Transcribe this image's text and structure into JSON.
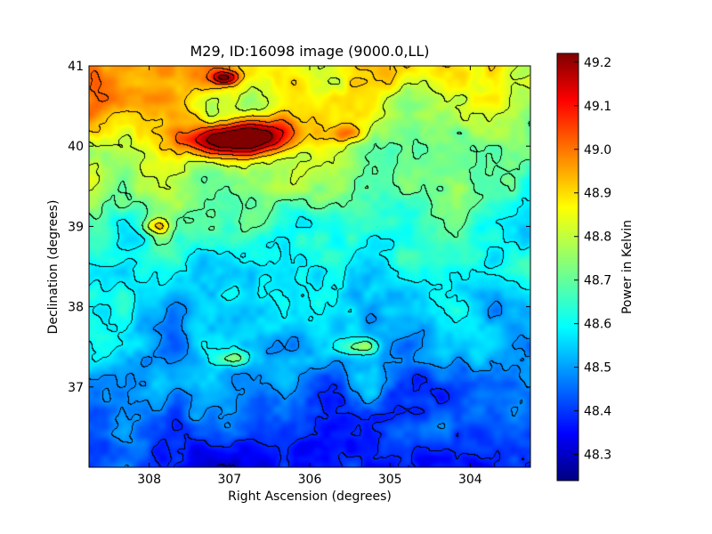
{
  "chart_data": {
    "type": "heatmap",
    "title": "M29, ID:16098 image (9000.0,LL)",
    "xlabel": "Right Ascension (degrees)",
    "ylabel": "Declination (degrees)",
    "xlim": [
      308.75,
      303.25
    ],
    "ylim": [
      36.0,
      41.0
    ],
    "x_ticks": [
      308,
      307,
      306,
      305,
      304
    ],
    "x_tick_labels": [
      "308",
      "307",
      "306",
      "305",
      "304"
    ],
    "y_ticks": [
      37,
      38,
      39,
      40,
      41
    ],
    "y_tick_labels": [
      "37",
      "38",
      "39",
      "40",
      "41"
    ],
    "colorbar": {
      "label": "Power in Kelvin",
      "range": [
        48.24,
        49.22
      ],
      "ticks": [
        48.3,
        48.4,
        48.5,
        48.6,
        48.7,
        48.8,
        48.9,
        49.0,
        49.1,
        49.2
      ],
      "tick_labels": [
        "48.3",
        "48.4",
        "48.5",
        "48.6",
        "48.7",
        "48.8",
        "48.9",
        "49.0",
        "49.1",
        "49.2"
      ],
      "colormap": "jet"
    },
    "contours": true,
    "features": [
      {
        "ra": 306.6,
        "dec": 40.12,
        "peak": 49.18
      },
      {
        "ra": 307.1,
        "dec": 40.05,
        "peak": 49.05
      },
      {
        "ra": 307.05,
        "dec": 40.85,
        "peak": 49.08
      },
      {
        "ra": 305.5,
        "dec": 40.15,
        "peak": 48.98
      },
      {
        "ra": 307.9,
        "dec": 39.0,
        "peak": 48.9
      },
      {
        "ra": 306.95,
        "dec": 37.35,
        "peak": 48.8
      },
      {
        "ra": 305.35,
        "dec": 37.5,
        "peak": 48.8
      }
    ]
  }
}
